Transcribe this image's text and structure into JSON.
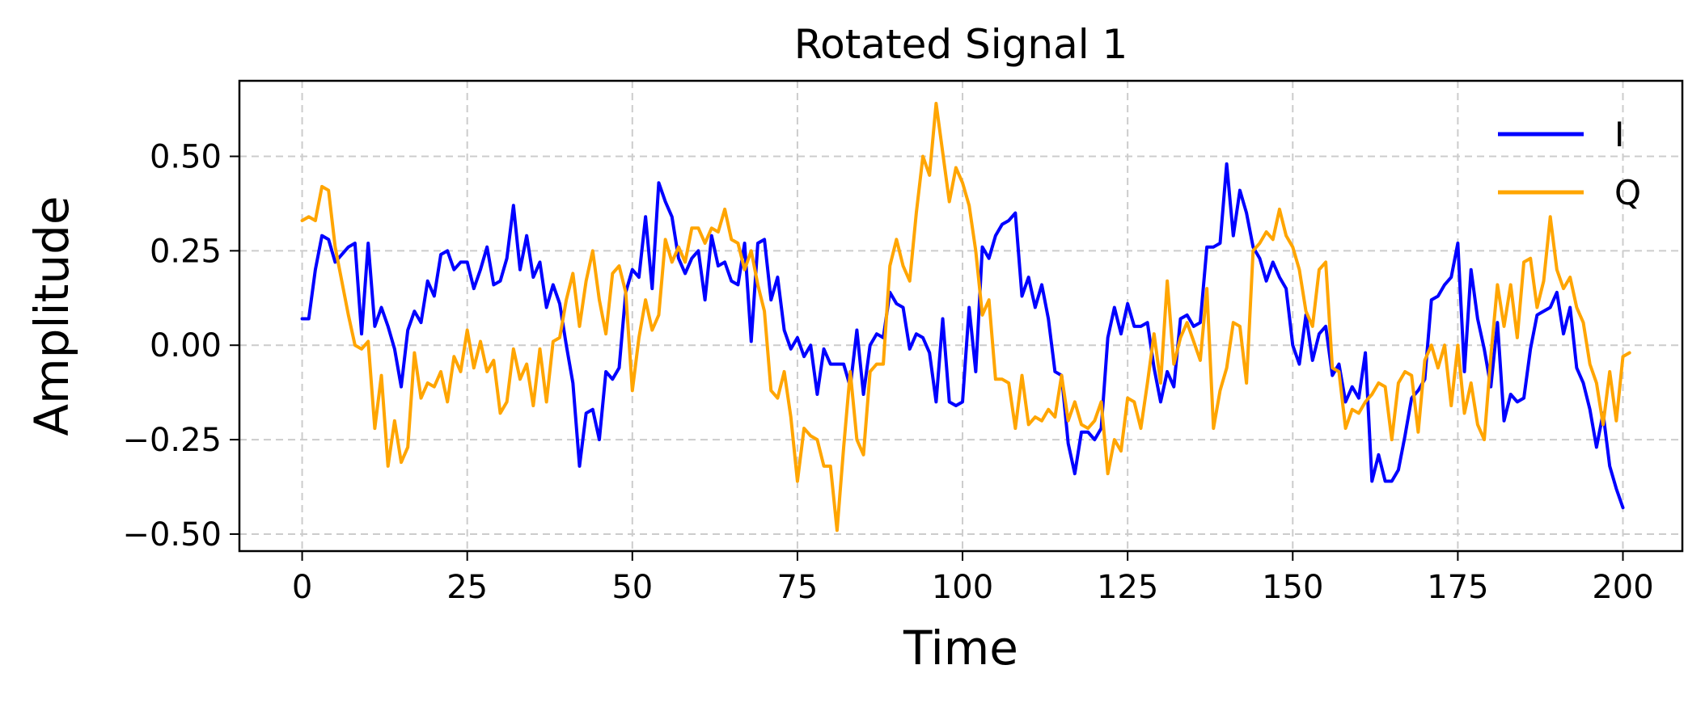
{
  "chart_data": {
    "type": "line",
    "title": "Rotated Signal 1",
    "xlabel": "Time",
    "ylabel": "Amplitude",
    "xlim": [
      -9.5,
      209
    ],
    "ylim": [
      -0.545,
      0.7
    ],
    "xticks": [
      0,
      25,
      50,
      75,
      100,
      125,
      150,
      175,
      200
    ],
    "xtick_labels": [
      "0",
      "25",
      "50",
      "75",
      "100",
      "125",
      "150",
      "175",
      "200"
    ],
    "yticks": [
      0.5,
      0.25,
      0.0,
      -0.25,
      -0.5
    ],
    "ytick_labels": [
      "0.50",
      "0.25",
      "0.00",
      "−0.25",
      "−0.50"
    ],
    "grid": true,
    "legend_position": "top-right",
    "x_start": 0,
    "x_step": 1,
    "series": [
      {
        "name": "I",
        "color": "#0000ff",
        "values": [
          0.07,
          0.07,
          0.2,
          0.29,
          0.28,
          0.22,
          0.24,
          0.26,
          0.27,
          0.03,
          0.27,
          0.05,
          0.1,
          0.05,
          -0.01,
          -0.11,
          0.04,
          0.09,
          0.06,
          0.17,
          0.13,
          0.24,
          0.25,
          0.2,
          0.22,
          0.22,
          0.15,
          0.2,
          0.26,
          0.16,
          0.17,
          0.23,
          0.37,
          0.2,
          0.29,
          0.18,
          0.22,
          0.1,
          0.16,
          0.11,
          0.0,
          -0.1,
          -0.32,
          -0.18,
          -0.17,
          -0.25,
          -0.07,
          -0.09,
          -0.06,
          0.14,
          0.2,
          0.18,
          0.34,
          0.15,
          0.43,
          0.38,
          0.34,
          0.23,
          0.19,
          0.23,
          0.25,
          0.12,
          0.29,
          0.21,
          0.22,
          0.17,
          0.16,
          0.27,
          0.01,
          0.27,
          0.28,
          0.12,
          0.18,
          0.04,
          -0.01,
          0.02,
          -0.03,
          0.0,
          -0.13,
          -0.01,
          -0.05,
          -0.05,
          -0.05,
          -0.11,
          0.04,
          -0.13,
          0.0,
          0.03,
          0.02,
          0.14,
          0.11,
          0.1,
          -0.01,
          0.03,
          0.02,
          -0.02,
          -0.15,
          0.07,
          -0.15,
          -0.16,
          -0.15,
          0.1,
          -0.07,
          0.26,
          0.23,
          0.29,
          0.32,
          0.33,
          0.35,
          0.13,
          0.18,
          0.1,
          0.16,
          0.07,
          -0.07,
          -0.08,
          -0.26,
          -0.34,
          -0.23,
          -0.23,
          -0.25,
          -0.22,
          0.02,
          0.1,
          0.03,
          0.11,
          0.05,
          0.05,
          0.06,
          -0.06,
          -0.15,
          -0.07,
          -0.11,
          0.07,
          0.08,
          0.05,
          0.06,
          0.26,
          0.26,
          0.27,
          0.48,
          0.29,
          0.41,
          0.35,
          0.26,
          0.23,
          0.17,
          0.22,
          0.18,
          0.15,
          0.0,
          -0.05,
          0.08,
          -0.04,
          0.03,
          0.05,
          -0.08,
          -0.05,
          -0.15,
          -0.11,
          -0.14,
          -0.02,
          -0.36,
          -0.29,
          -0.36,
          -0.36,
          -0.33,
          -0.24,
          -0.14,
          -0.12,
          -0.09,
          0.12,
          0.13,
          0.16,
          0.18,
          0.27,
          -0.07,
          0.2,
          0.07,
          -0.01,
          -0.11,
          0.06,
          -0.2,
          -0.13,
          -0.15,
          -0.14,
          -0.01,
          0.08,
          0.09,
          0.1,
          0.14,
          0.03,
          0.1,
          -0.06,
          -0.1,
          -0.17,
          -0.27,
          -0.18,
          -0.32,
          -0.38,
          -0.43
        ]
      },
      {
        "name": "Q",
        "color": "#ffa500",
        "values": [
          0.33,
          0.34,
          0.33,
          0.42,
          0.41,
          0.26,
          0.17,
          0.08,
          0.0,
          -0.01,
          0.01,
          -0.22,
          -0.08,
          -0.32,
          -0.2,
          -0.31,
          -0.27,
          -0.02,
          -0.14,
          -0.1,
          -0.11,
          -0.07,
          -0.15,
          -0.03,
          -0.07,
          0.04,
          -0.06,
          0.01,
          -0.07,
          -0.04,
          -0.18,
          -0.15,
          -0.01,
          -0.09,
          -0.05,
          -0.16,
          -0.01,
          -0.15,
          0.01,
          0.02,
          0.12,
          0.19,
          0.05,
          0.17,
          0.25,
          0.12,
          0.03,
          0.19,
          0.21,
          0.14,
          -0.12,
          0.02,
          0.12,
          0.04,
          0.08,
          0.28,
          0.22,
          0.26,
          0.22,
          0.31,
          0.31,
          0.27,
          0.31,
          0.3,
          0.36,
          0.28,
          0.27,
          0.2,
          0.25,
          0.16,
          0.09,
          -0.12,
          -0.14,
          -0.07,
          -0.19,
          -0.36,
          -0.22,
          -0.24,
          -0.25,
          -0.32,
          -0.32,
          -0.49,
          -0.27,
          -0.07,
          -0.25,
          -0.29,
          -0.07,
          -0.05,
          -0.05,
          0.21,
          0.28,
          0.21,
          0.17,
          0.35,
          0.5,
          0.45,
          0.64,
          0.51,
          0.38,
          0.47,
          0.43,
          0.37,
          0.25,
          0.08,
          0.12,
          -0.09,
          -0.09,
          -0.1,
          -0.22,
          -0.08,
          -0.21,
          -0.19,
          -0.2,
          -0.17,
          -0.19,
          -0.08,
          -0.2,
          -0.15,
          -0.21,
          -0.22,
          -0.2,
          -0.15,
          -0.34,
          -0.25,
          -0.28,
          -0.14,
          -0.15,
          -0.22,
          -0.1,
          0.03,
          -0.1,
          0.17,
          -0.05,
          0.02,
          0.06,
          0.01,
          -0.04,
          0.15,
          -0.22,
          -0.12,
          -0.06,
          0.06,
          0.05,
          -0.1,
          0.25,
          0.27,
          0.3,
          0.28,
          0.36,
          0.29,
          0.26,
          0.2,
          0.09,
          0.05,
          0.2,
          0.22,
          -0.06,
          -0.07,
          -0.22,
          -0.17,
          -0.18,
          -0.15,
          -0.13,
          -0.1,
          -0.11,
          -0.25,
          -0.1,
          -0.07,
          -0.08,
          -0.23,
          -0.04,
          0.0,
          -0.06,
          0.0,
          -0.16,
          0.0,
          -0.18,
          -0.1,
          -0.21,
          -0.25,
          -0.03,
          0.16,
          0.05,
          0.16,
          0.02,
          0.22,
          0.23,
          0.1,
          0.17,
          0.34,
          0.2,
          0.15,
          0.18,
          0.1,
          0.06,
          -0.05,
          -0.1,
          -0.21,
          -0.07,
          -0.2,
          -0.03,
          -0.02
        ]
      }
    ]
  }
}
